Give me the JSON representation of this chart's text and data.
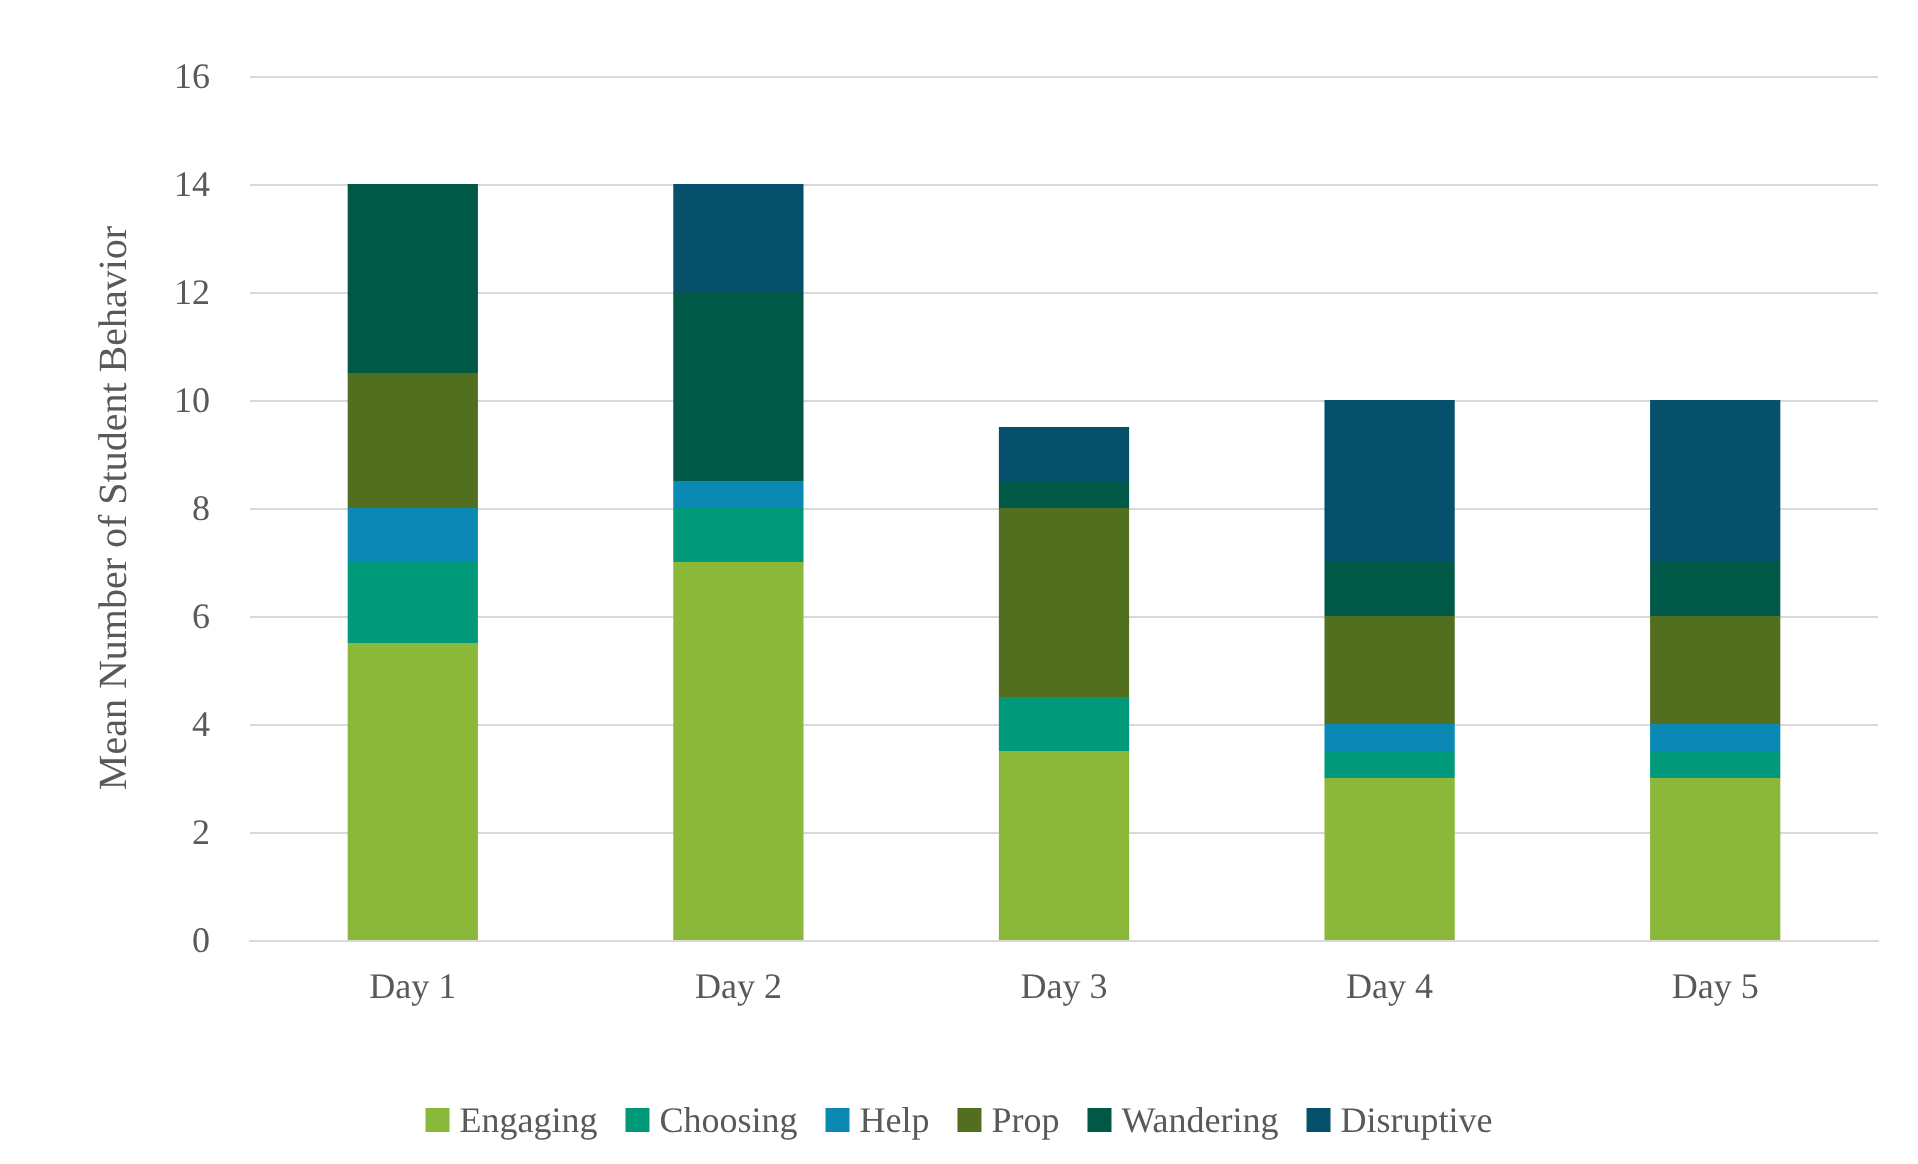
{
  "chart_data": {
    "type": "bar",
    "stacked": true,
    "ylabel": "Mean Number of Student Behavior",
    "categories": [
      "Day 1",
      "Day 2",
      "Day 3",
      "Day 4",
      "Day 5"
    ],
    "series": [
      {
        "name": "Engaging",
        "color": "#8cb83a",
        "values": [
          5.5,
          7,
          3.5,
          3,
          3
        ]
      },
      {
        "name": "Choosing",
        "color": "#00997a",
        "values": [
          1.5,
          1,
          1,
          0.5,
          0.5
        ]
      },
      {
        "name": "Help",
        "color": "#0b88b4",
        "values": [
          1,
          0.5,
          0,
          0.5,
          0.5
        ]
      },
      {
        "name": "Prop",
        "color": "#526f1f",
        "values": [
          2.5,
          0,
          3.5,
          2,
          2
        ]
      },
      {
        "name": "Wandering",
        "color": "#005946",
        "values": [
          3.5,
          3.5,
          0.5,
          1,
          1
        ]
      },
      {
        "name": "Disruptive",
        "color": "#07506b",
        "values": [
          0,
          2,
          1,
          3,
          3
        ]
      }
    ],
    "ylim": [
      0,
      16
    ],
    "yticks": [
      0,
      2,
      4,
      6,
      8,
      10,
      12,
      14,
      16
    ],
    "grid": "y",
    "legend": "bottom"
  }
}
